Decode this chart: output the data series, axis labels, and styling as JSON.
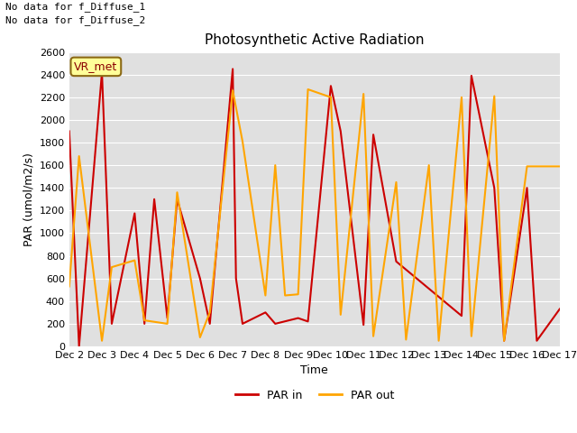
{
  "title": "Photosynthetic Active Radiation",
  "xlabel": "Time",
  "ylabel": "PAR (umol/m2/s)",
  "text_top_left_line1": "No data for f_Diffuse_1",
  "text_top_left_line2": "No data for f_Diffuse_2",
  "legend_box_label": "VR_met",
  "legend_box_facecolor": "#FFFF99",
  "legend_box_edgecolor": "#8B6914",
  "ylim": [
    0,
    2600
  ],
  "yticks": [
    0,
    200,
    400,
    600,
    800,
    1000,
    1200,
    1400,
    1600,
    1800,
    2000,
    2200,
    2400,
    2600
  ],
  "color_par_in": "#CC0000",
  "color_par_out": "#FFA500",
  "background_facecolor": "#E0E0E0",
  "par_in_x": [
    2.0,
    2.3,
    3.0,
    3.3,
    4.0,
    4.3,
    4.6,
    5.0,
    5.3,
    6.0,
    6.3,
    7.0,
    7.1,
    7.3,
    8.0,
    8.3,
    9.0,
    9.3,
    10.0,
    10.3,
    11.0,
    11.3,
    12.0,
    14.0,
    14.3,
    15.0,
    15.3,
    16.0,
    16.3,
    17.0
  ],
  "par_in_y": [
    1900,
    0,
    2420,
    200,
    1175,
    200,
    1300,
    250,
    1300,
    600,
    200,
    2450,
    600,
    200,
    300,
    200,
    250,
    220,
    2300,
    1900,
    190,
    1870,
    750,
    270,
    2390,
    1400,
    50,
    1400,
    50,
    330
  ],
  "par_out_x": [
    2.0,
    2.3,
    3.0,
    3.3,
    4.0,
    4.3,
    5.0,
    5.3,
    6.0,
    6.3,
    7.0,
    7.3,
    8.0,
    8.3,
    8.6,
    9.0,
    9.3,
    10.0,
    10.3,
    11.0,
    11.3,
    12.0,
    12.3,
    13.0,
    13.3,
    14.0,
    14.3,
    15.0,
    15.3,
    16.0,
    16.3,
    17.0
  ],
  "par_out_y": [
    530,
    1680,
    50,
    700,
    760,
    230,
    200,
    1360,
    80,
    300,
    2260,
    1810,
    450,
    1600,
    450,
    460,
    2270,
    2200,
    280,
    2230,
    90,
    1450,
    60,
    1600,
    50,
    2200,
    90,
    2210,
    50,
    1590,
    1590,
    1590
  ]
}
